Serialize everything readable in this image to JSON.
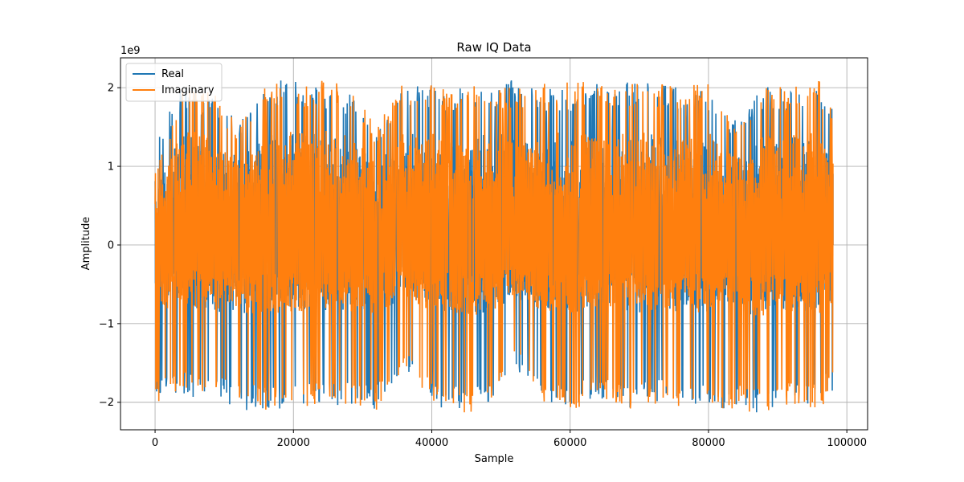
{
  "chart_data": {
    "type": "line",
    "title": "Raw IQ Data",
    "xlabel": "Sample",
    "ylabel": "Amplitude",
    "y_offset_label": "1e9",
    "xlim": [
      -5000,
      103000
    ],
    "ylim": [
      -2.35,
      2.38
    ],
    "x_ticks": [
      0,
      20000,
      40000,
      60000,
      80000,
      100000
    ],
    "x_tick_labels": [
      "0",
      "20000",
      "40000",
      "60000",
      "80000",
      "100000"
    ],
    "y_ticks": [
      -2,
      -1,
      0,
      1,
      2
    ],
    "y_tick_labels": [
      "−2",
      "−1",
      "0",
      "1",
      "2"
    ],
    "grid": true,
    "legend_position": "upper left",
    "n_samples": 98304,
    "series": [
      {
        "name": "Real",
        "color": "#1f77b4",
        "x": [
          0,
          4000,
          8000,
          12000,
          16000,
          20000,
          24000,
          28000,
          32000,
          36000,
          40000,
          44000,
          48000,
          52000,
          56000,
          60000,
          64000,
          68000,
          72000,
          76000,
          80000,
          84000,
          88000,
          92000,
          96000,
          98000
        ],
        "upper_envelope": [
          1.3,
          2.05,
          1.9,
          1.6,
          2.1,
          2.1,
          2.05,
          1.95,
          1.5,
          2.05,
          2.0,
          2.0,
          2.0,
          2.15,
          2.0,
          2.0,
          2.05,
          2.1,
          2.05,
          2.0,
          1.95,
          1.6,
          2.05,
          2.0,
          2.0,
          1.75
        ],
        "lower_envelope": [
          -2.0,
          -1.9,
          -2.0,
          -2.1,
          -2.1,
          -2.1,
          -2.05,
          -2.05,
          -2.1,
          -1.6,
          -2.05,
          -2.1,
          -2.05,
          -1.6,
          -2.0,
          -2.05,
          -1.95,
          -2.1,
          -2.0,
          -2.0,
          -2.1,
          -2.1,
          -2.15,
          -2.05,
          -2.0,
          -1.85
        ]
      },
      {
        "name": "Imaginary",
        "color": "#ff7f0e",
        "x": [
          0,
          4000,
          8000,
          12000,
          16000,
          20000,
          24000,
          28000,
          32000,
          36000,
          40000,
          44000,
          48000,
          52000,
          56000,
          60000,
          64000,
          68000,
          72000,
          76000,
          80000,
          84000,
          88000,
          92000,
          96000,
          98000
        ],
        "upper_envelope": [
          0.9,
          2.1,
          2.05,
          1.55,
          2.1,
          2.05,
          2.1,
          2.05,
          1.5,
          2.1,
          2.05,
          2.0,
          2.05,
          2.0,
          2.05,
          2.1,
          2.1,
          2.05,
          2.05,
          2.05,
          2.05,
          1.6,
          2.05,
          2.0,
          2.1,
          1.7
        ],
        "lower_envelope": [
          -2.05,
          -1.85,
          -1.95,
          -2.05,
          -2.1,
          -2.1,
          -2.0,
          -2.05,
          -2.1,
          -1.55,
          -2.05,
          -2.15,
          -2.1,
          -1.5,
          -2.0,
          -2.15,
          -1.9,
          -2.1,
          -2.05,
          -2.05,
          -2.1,
          -2.1,
          -2.15,
          -2.05,
          -2.1,
          -1.85
        ]
      }
    ]
  }
}
